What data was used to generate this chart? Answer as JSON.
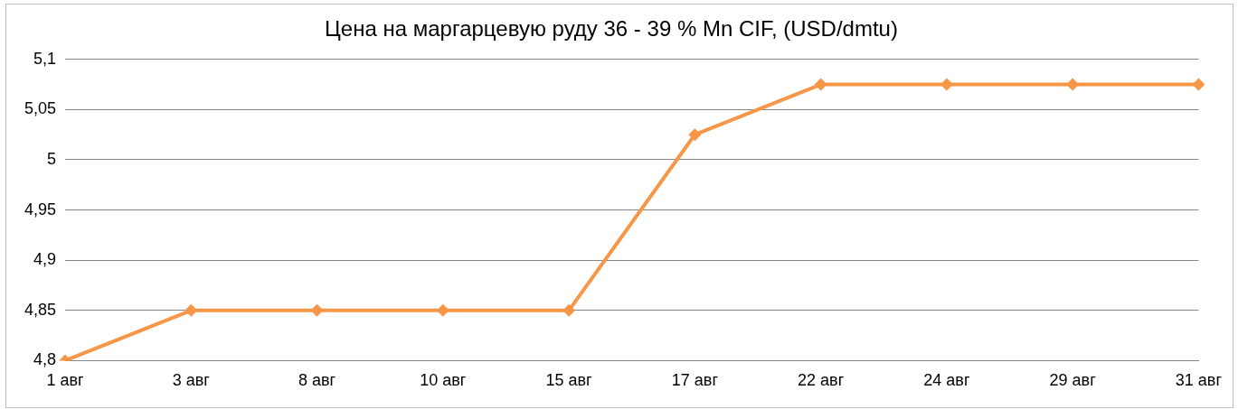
{
  "chart_data": {
    "type": "line",
    "title": "Цена на маргарцевую руду 36 - 39 % Mn CIF, (USD/dmtu)",
    "categories": [
      "1 авг",
      "3 авг",
      "8 авг",
      "10 авг",
      "15 авг",
      "17 авг",
      "22 авг",
      "24 авг",
      "29 авг",
      "31 авг"
    ],
    "series": [
      {
        "color": "#f79646",
        "values": [
          4.8,
          4.85,
          4.85,
          4.85,
          4.85,
          5.025,
          5.075,
          5.075,
          5.075,
          5.075
        ]
      }
    ],
    "ylim": [
      4.8,
      5.1
    ],
    "yticks": [
      {
        "value": 4.8,
        "label": "4,8"
      },
      {
        "value": 4.85,
        "label": "4,85"
      },
      {
        "value": 4.9,
        "label": "4,9"
      },
      {
        "value": 4.95,
        "label": "4,95"
      },
      {
        "value": 5,
        "label": "5"
      },
      {
        "value": 5.05,
        "label": "5,05"
      },
      {
        "value": 5.1,
        "label": "5,1"
      }
    ],
    "grid": "y",
    "legend": false,
    "marker": "diamond",
    "line_style": "solid"
  }
}
